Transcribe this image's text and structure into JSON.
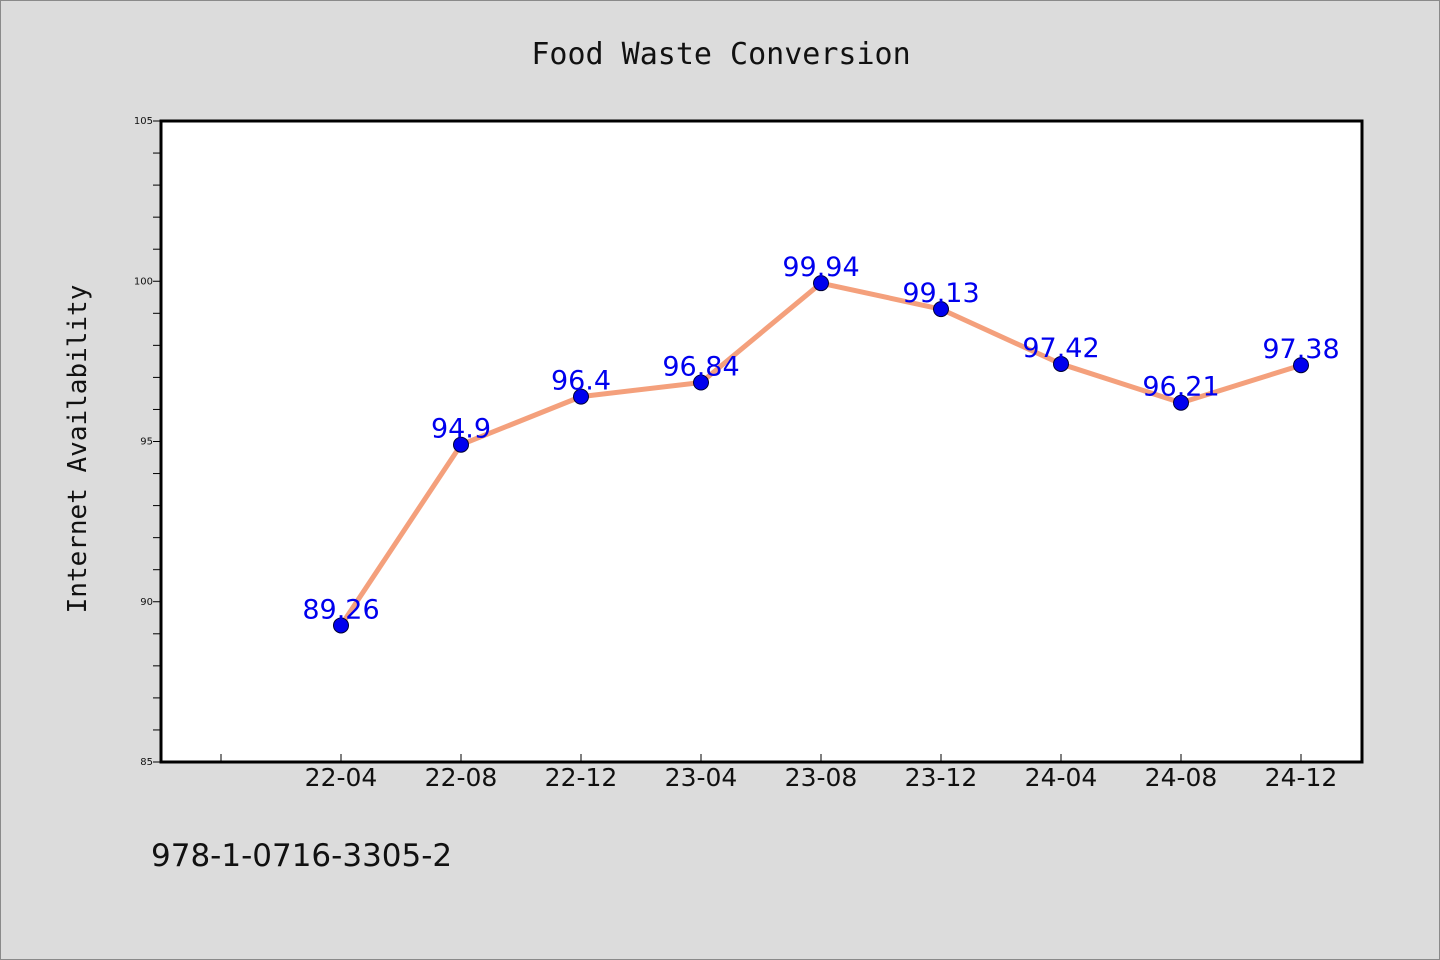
{
  "chart_data": {
    "type": "line",
    "title": "Food Waste Conversion",
    "xlabel": "",
    "ylabel": "Internet Availability",
    "categories": [
      "22-04",
      "22-08",
      "22-12",
      "23-04",
      "23-08",
      "23-12",
      "24-04",
      "24-08",
      "24-12"
    ],
    "series": [
      {
        "values": [
          89.26,
          94.9,
          96.4,
          96.84,
          99.94,
          99.13,
          97.42,
          96.21,
          97.38
        ],
        "labels": [
          "89.26",
          "94.9",
          "96.4",
          "96.84",
          "99.94",
          "99.13",
          "97.42",
          "96.21",
          "97.38"
        ],
        "line_color": "#f4a07c",
        "marker_color": "#0000ee"
      }
    ],
    "ylim": [
      85,
      105
    ],
    "yticks": [
      "85",
      "90",
      "95",
      "100",
      "105"
    ],
    "grid": false,
    "legend": "none"
  },
  "footnote": "978-1-0716-3305-2",
  "colors": {
    "background": "#dcdcdc",
    "plot_background": "#ffffff",
    "line": "#f4a07c",
    "marker": "#0000ee",
    "label": "#0000ee"
  }
}
